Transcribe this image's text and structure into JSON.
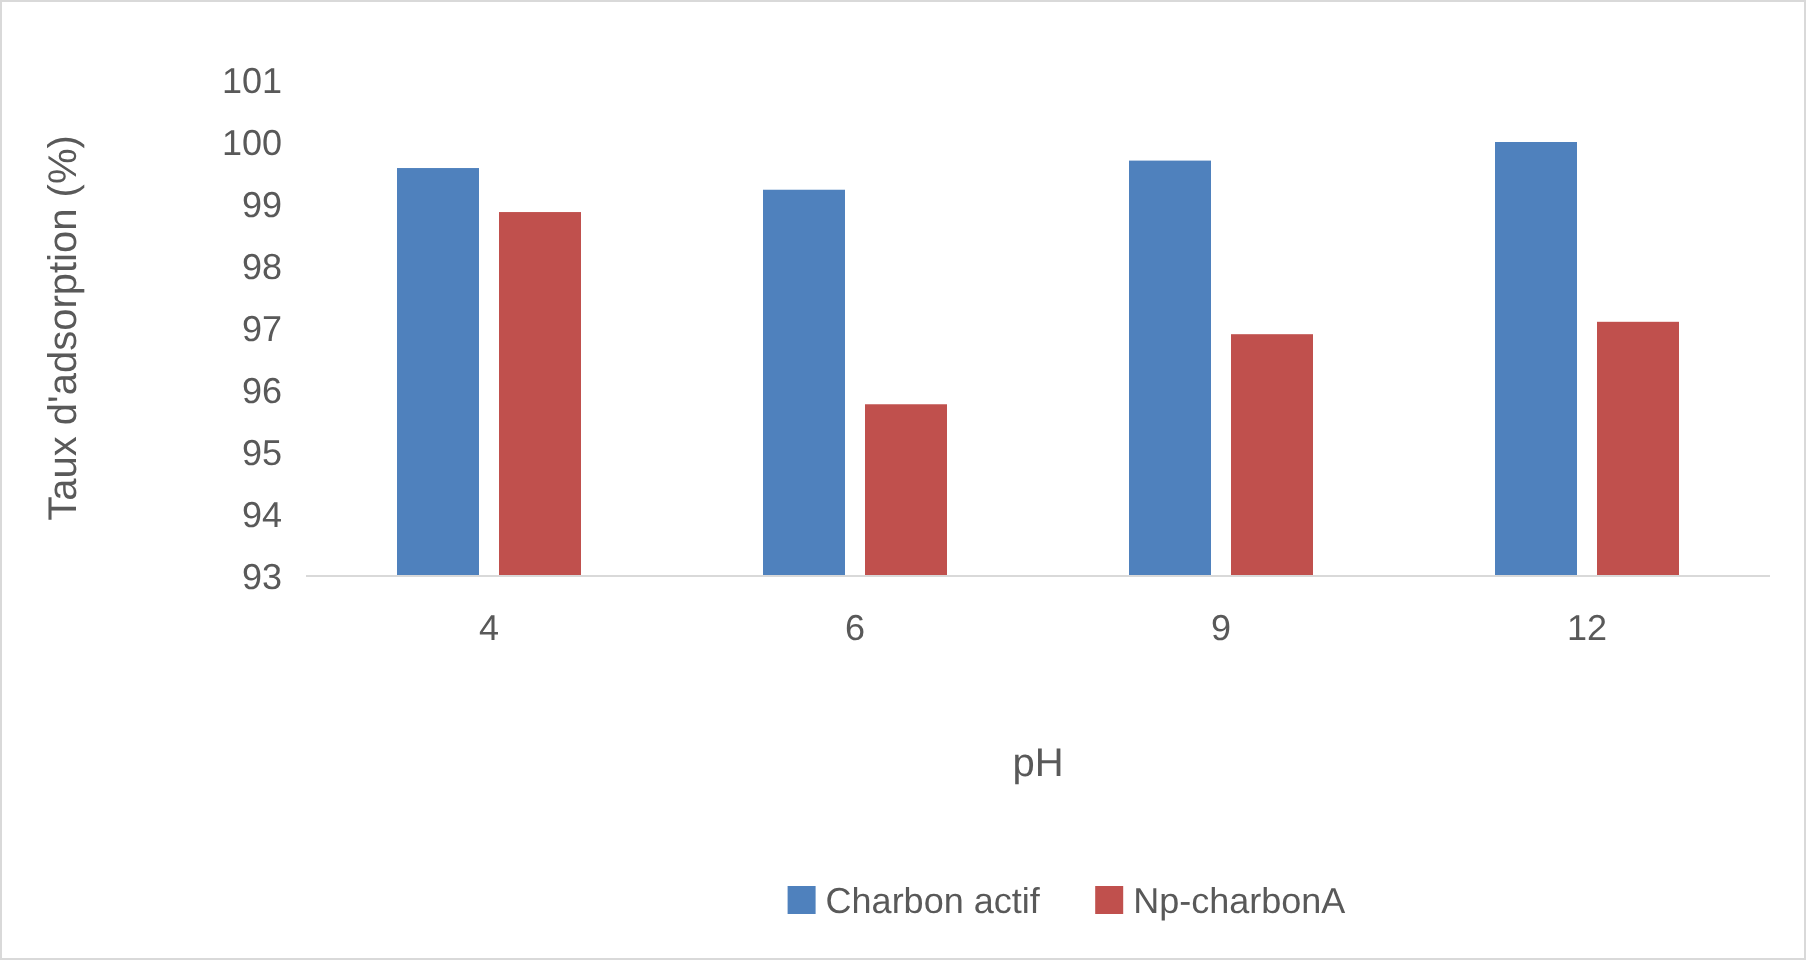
{
  "chart_data": {
    "type": "bar",
    "xlabel": "pH",
    "ylabel": "Taux d'adsorption (%)",
    "categories": [
      "4",
      "6",
      "9",
      "12"
    ],
    "series": [
      {
        "name": "Charbon actif",
        "color": "#4f81bd",
        "values": [
          99.58,
          99.23,
          99.7,
          100
        ]
      },
      {
        "name": "Np-charbonA",
        "color": "#c0504d",
        "values": [
          98.87,
          95.77,
          96.9,
          97.1
        ]
      }
    ],
    "ylim": [
      93,
      101
    ],
    "yticks": [
      93,
      94,
      95,
      96,
      97,
      98,
      99,
      100,
      101
    ],
    "grid": false,
    "legend": "bottom"
  }
}
